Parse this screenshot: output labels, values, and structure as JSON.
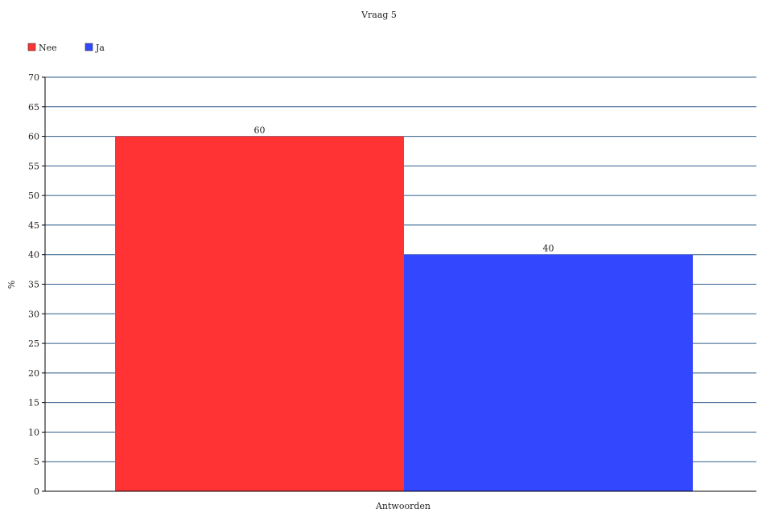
{
  "chart_data": {
    "type": "bar",
    "title": "Vraag 5",
    "xlabel": "Antwoorden",
    "ylabel": "%",
    "categories": [
      "Antwoorden"
    ],
    "series": [
      {
        "name": "Nee",
        "values": [
          60
        ],
        "color": "#ff3333"
      },
      {
        "name": "Ja",
        "values": [
          40
        ],
        "color": "#3347ff"
      }
    ],
    "ylim": [
      0,
      70
    ],
    "y_ticks": [
      0,
      5,
      10,
      15,
      20,
      25,
      30,
      35,
      40,
      45,
      50,
      55,
      60,
      65,
      70
    ],
    "data_labels": [
      "60",
      "40"
    ],
    "grid": true,
    "grid_color": "#2f5d8a",
    "legend_position": "top-left"
  }
}
